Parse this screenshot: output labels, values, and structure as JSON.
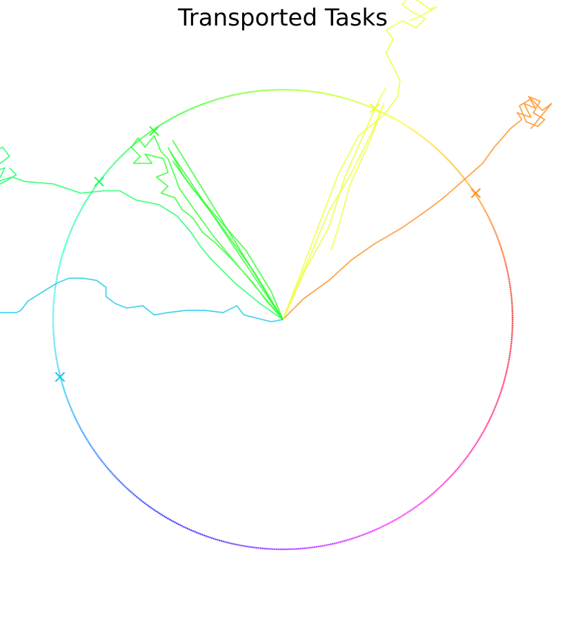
{
  "chart_data": {
    "type": "scatter",
    "title": "Transported Tasks",
    "xlabel": "",
    "ylabel": "",
    "axes_visible": false,
    "grid": false,
    "xlim": [
      -1.25,
      1.25
    ],
    "ylim": [
      -1.25,
      1.25
    ],
    "target_circle": {
      "radius": 1.0,
      "colormap": "hsv"
    },
    "series": [
      {
        "name": "task-orange",
        "color": "#ff8c1a",
        "target": [
          0.84,
          0.55
        ],
        "trajectories": [
          [
            [
              0,
              0
            ],
            [
              0.09,
              0.09
            ],
            [
              0.2,
              0.17
            ],
            [
              0.3,
              0.26
            ],
            [
              0.4,
              0.33
            ],
            [
              0.52,
              0.4
            ],
            [
              0.62,
              0.47
            ],
            [
              0.7,
              0.53
            ],
            [
              0.78,
              0.6
            ],
            [
              0.87,
              0.68
            ],
            [
              0.92,
              0.75
            ],
            [
              0.99,
              0.83
            ],
            [
              1.04,
              0.87
            ],
            [
              1.02,
              0.9
            ],
            [
              1.08,
              0.88
            ],
            [
              1.05,
              0.94
            ],
            [
              1.1,
              0.92
            ],
            [
              1.07,
              0.97
            ],
            [
              1.12,
              0.95
            ],
            [
              1.09,
              0.9
            ],
            [
              1.14,
              0.87
            ],
            [
              1.11,
              0.84
            ],
            [
              1.06,
              0.86
            ],
            [
              1.03,
              0.93
            ],
            [
              1.08,
              0.96
            ],
            [
              1.13,
              0.91
            ],
            [
              1.17,
              0.94
            ],
            [
              1.12,
              0.88
            ],
            [
              1.08,
              0.83
            ]
          ]
        ]
      },
      {
        "name": "task-yellow",
        "color": "#eeff33",
        "target": [
          0.4,
          0.92
        ],
        "trajectories": [
          [
            [
              0,
              0
            ],
            [
              0.07,
              0.18
            ],
            [
              0.16,
              0.42
            ],
            [
              0.24,
              0.63
            ],
            [
              0.33,
              0.8
            ],
            [
              0.44,
              0.89
            ],
            [
              0.5,
              0.97
            ],
            [
              0.51,
              1.04
            ],
            [
              0.48,
              1.1
            ],
            [
              0.45,
              1.16
            ],
            [
              0.48,
              1.22
            ],
            [
              0.45,
              1.26
            ],
            [
              0.52,
              1.3
            ],
            [
              0.58,
              1.27
            ],
            [
              0.62,
              1.31
            ],
            [
              0.56,
              1.34
            ],
            [
              0.52,
              1.37
            ],
            [
              0.55,
              1.41
            ],
            [
              0.6,
              1.38
            ],
            [
              0.64,
              1.35
            ],
            [
              0.67,
              1.36
            ],
            [
              0.6,
              1.32
            ],
            [
              0.55,
              1.3
            ]
          ],
          [
            [
              0,
              0
            ],
            [
              0.1,
              0.22
            ],
            [
              0.2,
              0.4
            ],
            [
              0.27,
              0.62
            ],
            [
              0.35,
              0.8
            ],
            [
              0.42,
              0.96
            ],
            [
              0.45,
              1.01
            ]
          ],
          [
            [
              0,
              0
            ],
            [
              0.12,
              0.28
            ],
            [
              0.2,
              0.47
            ],
            [
              0.3,
              0.64
            ],
            [
              0.39,
              0.82
            ],
            [
              0.44,
              0.94
            ],
            [
              0.38,
              0.78
            ],
            [
              0.29,
              0.58
            ],
            [
              0.25,
              0.43
            ],
            [
              0.21,
              0.3
            ]
          ]
        ]
      },
      {
        "name": "task-green",
        "color": "#2bff2b",
        "target": [
          -0.56,
          0.82
        ],
        "trajectories": [
          [
            [
              0,
              0
            ],
            [
              -0.1,
              0.12
            ],
            [
              -0.2,
              0.24
            ],
            [
              -0.3,
              0.36
            ],
            [
              -0.38,
              0.47
            ],
            [
              -0.45,
              0.57
            ],
            [
              -0.48,
              0.65
            ],
            [
              -0.5,
              0.7
            ],
            [
              -0.53,
              0.73
            ],
            [
              -0.56,
              0.8
            ],
            [
              -0.6,
              0.75
            ],
            [
              -0.63,
              0.79
            ],
            [
              -0.66,
              0.75
            ],
            [
              -0.62,
              0.71
            ],
            [
              -0.65,
              0.68
            ],
            [
              -0.57,
              0.68
            ],
            [
              -0.6,
              0.72
            ],
            [
              -0.52,
              0.7
            ],
            [
              -0.5,
              0.64
            ],
            [
              -0.55,
              0.62
            ],
            [
              -0.5,
              0.58
            ],
            [
              -0.53,
              0.55
            ],
            [
              -0.47,
              0.53
            ],
            [
              -0.44,
              0.48
            ],
            [
              -0.39,
              0.44
            ],
            [
              -0.35,
              0.38
            ],
            [
              -0.29,
              0.33
            ],
            [
              -0.22,
              0.26
            ],
            [
              -0.13,
              0.16
            ],
            [
              -0.07,
              0.08
            ],
            [
              0,
              0
            ]
          ],
          [
            [
              0,
              0
            ],
            [
              -0.48,
              0.78
            ]
          ],
          [
            [
              0,
              0
            ],
            [
              -0.49,
              0.73
            ]
          ],
          [
            [
              0,
              0
            ],
            [
              -0.12,
              0.2
            ],
            [
              -0.27,
              0.41
            ],
            [
              -0.43,
              0.62
            ],
            [
              -0.5,
              0.75
            ]
          ],
          [
            [
              0,
              0
            ],
            [
              -0.05,
              0.12
            ],
            [
              -0.16,
              0.3
            ],
            [
              -0.3,
              0.46
            ],
            [
              -0.4,
              0.58
            ],
            [
              -0.48,
              0.69
            ]
          ]
        ]
      },
      {
        "name": "task-mint",
        "color": "#1aff66",
        "target": [
          -0.8,
          0.6
        ],
        "trajectories": [
          [
            [
              0,
              0
            ],
            [
              -0.1,
              0.07
            ],
            [
              -0.21,
              0.16
            ],
            [
              -0.31,
              0.26
            ],
            [
              -0.36,
              0.32
            ],
            [
              -0.4,
              0.38
            ],
            [
              -0.46,
              0.45
            ],
            [
              -0.54,
              0.5
            ],
            [
              -0.64,
              0.52
            ],
            [
              -0.71,
              0.56
            ],
            [
              -0.78,
              0.56
            ],
            [
              -0.88,
              0.55
            ],
            [
              -1.0,
              0.59
            ],
            [
              -1.12,
              0.6
            ],
            [
              -1.18,
              0.62
            ],
            [
              -1.24,
              0.6
            ],
            [
              -1.21,
              0.66
            ],
            [
              -1.27,
              0.64
            ],
            [
              -1.3,
              0.67
            ],
            [
              -1.23,
              0.68
            ],
            [
              -1.19,
              0.71
            ],
            [
              -1.22,
              0.75
            ],
            [
              -1.28,
              0.72
            ],
            [
              -1.3,
              0.64
            ],
            [
              -1.25,
              0.58
            ],
            [
              -1.21,
              0.6
            ],
            [
              -1.16,
              0.63
            ],
            [
              -1.19,
              0.66
            ]
          ]
        ]
      },
      {
        "name": "task-cyan",
        "color": "#19c8e6",
        "target": [
          -0.97,
          -0.25
        ],
        "trajectories": [
          [
            [
              0,
              0
            ],
            [
              -0.05,
              -0.01
            ],
            [
              -0.09,
              0.0
            ],
            [
              -0.17,
              0.02
            ],
            [
              -0.2,
              0.06
            ],
            [
              -0.26,
              0.03
            ],
            [
              -0.34,
              0.04
            ],
            [
              -0.42,
              0.04
            ],
            [
              -0.5,
              0.03
            ],
            [
              -0.56,
              0.02
            ],
            [
              -0.61,
              0.06
            ],
            [
              -0.68,
              0.05
            ],
            [
              -0.73,
              0.07
            ],
            [
              -0.77,
              0.1
            ],
            [
              -0.77,
              0.14
            ],
            [
              -0.81,
              0.17
            ],
            [
              -0.87,
              0.18
            ],
            [
              -0.93,
              0.18
            ],
            [
              -0.98,
              0.16
            ],
            [
              -1.03,
              0.13
            ],
            [
              -1.11,
              0.08
            ],
            [
              -1.14,
              0.04
            ],
            [
              -1.16,
              0.03
            ],
            [
              -1.23,
              0.03
            ],
            [
              -1.27,
              -0.01
            ],
            [
              -1.3,
              -0.06
            ],
            [
              -1.33,
              -0.12
            ],
            [
              -1.35,
              -0.2
            ],
            [
              -1.42,
              -0.22
            ],
            [
              -1.43,
              -0.27
            ],
            [
              -1.4,
              -0.32
            ],
            [
              -1.45,
              -0.35
            ],
            [
              -1.41,
              -0.38
            ],
            [
              -1.47,
              -0.36
            ]
          ]
        ]
      }
    ]
  }
}
